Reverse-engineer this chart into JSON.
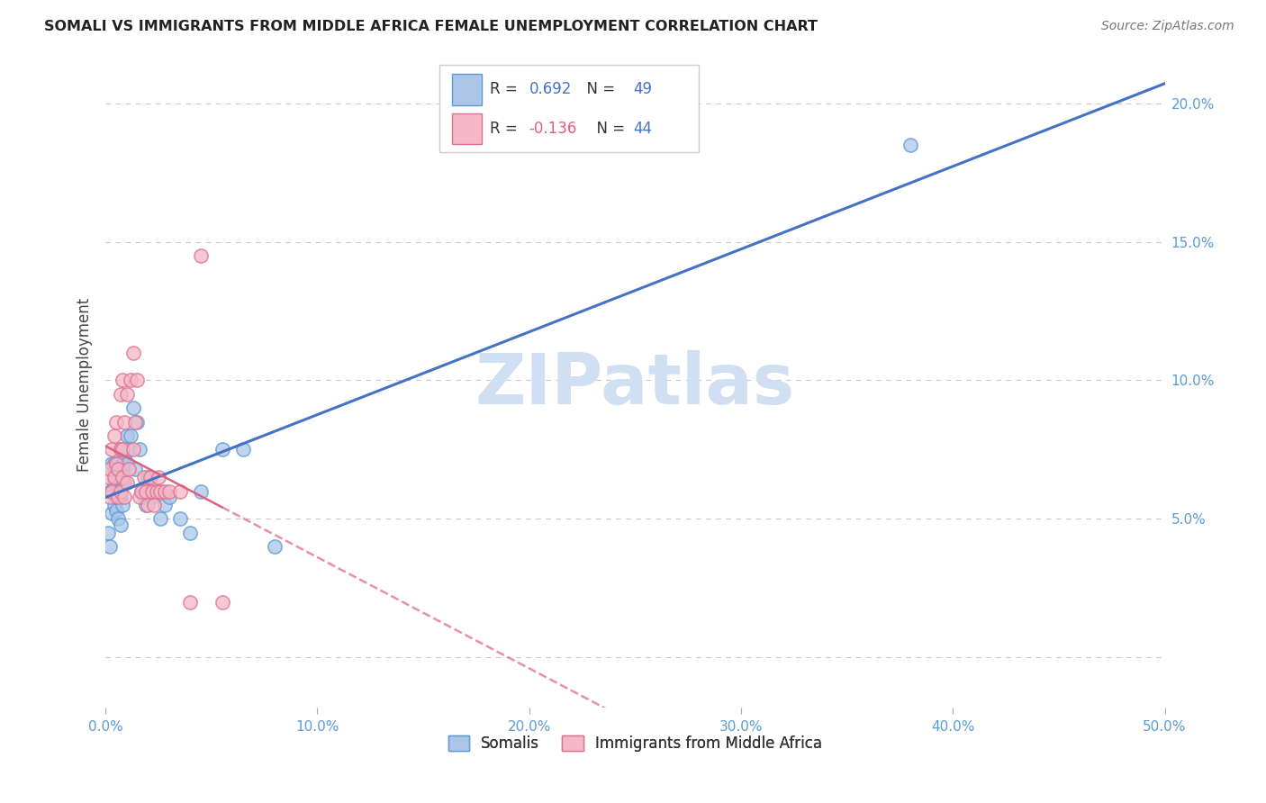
{
  "title": "SOMALI VS IMMIGRANTS FROM MIDDLE AFRICA FEMALE UNEMPLOYMENT CORRELATION CHART",
  "source": "Source: ZipAtlas.com",
  "ylabel": "Female Unemployment",
  "xlim": [
    0.0,
    0.5
  ],
  "ylim": [
    -0.018,
    0.215
  ],
  "xticks": [
    0.0,
    0.1,
    0.2,
    0.3,
    0.4,
    0.5
  ],
  "xticklabels": [
    "0.0%",
    "10.0%",
    "20.0%",
    "30.0%",
    "40.0%",
    "50.0%"
  ],
  "yticks": [
    0.0,
    0.05,
    0.1,
    0.15,
    0.2
  ],
  "yticklabels": [
    "",
    "5.0%",
    "10.0%",
    "15.0%",
    "20.0%"
  ],
  "somali_R": 0.692,
  "somali_N": 49,
  "immigrant_R": -0.136,
  "immigrant_N": 44,
  "somali_color": "#adc6e8",
  "somali_edge_color": "#5b9bd5",
  "immigrant_color": "#f4b8c8",
  "immigrant_edge_color": "#e07090",
  "somali_line_color": "#4472c4",
  "immigrant_line_color": "#e06080",
  "watermark": "ZIPatlas",
  "watermark_color": "#d0dff2",
  "tick_color": "#5b9bd5",
  "grid_color": "#c8c8c8",
  "somali_x": [
    0.001,
    0.002,
    0.002,
    0.003,
    0.003,
    0.003,
    0.004,
    0.004,
    0.004,
    0.005,
    0.005,
    0.005,
    0.006,
    0.006,
    0.006,
    0.007,
    0.007,
    0.007,
    0.007,
    0.008,
    0.008,
    0.008,
    0.009,
    0.009,
    0.01,
    0.01,
    0.011,
    0.012,
    0.013,
    0.014,
    0.015,
    0.016,
    0.017,
    0.018,
    0.019,
    0.02,
    0.021,
    0.022,
    0.024,
    0.026,
    0.028,
    0.03,
    0.035,
    0.04,
    0.045,
    0.055,
    0.065,
    0.08,
    0.38
  ],
  "somali_y": [
    0.045,
    0.04,
    0.06,
    0.052,
    0.06,
    0.07,
    0.055,
    0.063,
    0.07,
    0.053,
    0.058,
    0.068,
    0.05,
    0.06,
    0.07,
    0.048,
    0.058,
    0.065,
    0.075,
    0.055,
    0.062,
    0.07,
    0.063,
    0.072,
    0.07,
    0.08,
    0.075,
    0.08,
    0.09,
    0.068,
    0.085,
    0.075,
    0.06,
    0.058,
    0.055,
    0.065,
    0.06,
    0.058,
    0.06,
    0.05,
    0.055,
    0.058,
    0.05,
    0.045,
    0.06,
    0.075,
    0.075,
    0.04,
    0.185
  ],
  "immigrant_x": [
    0.001,
    0.002,
    0.002,
    0.003,
    0.003,
    0.004,
    0.004,
    0.005,
    0.005,
    0.006,
    0.006,
    0.007,
    0.007,
    0.007,
    0.008,
    0.008,
    0.008,
    0.009,
    0.009,
    0.01,
    0.01,
    0.011,
    0.012,
    0.013,
    0.013,
    0.014,
    0.015,
    0.016,
    0.017,
    0.018,
    0.019,
    0.02,
    0.021,
    0.022,
    0.023,
    0.024,
    0.025,
    0.026,
    0.028,
    0.03,
    0.035,
    0.04,
    0.045,
    0.055
  ],
  "immigrant_y": [
    0.065,
    0.058,
    0.068,
    0.06,
    0.075,
    0.065,
    0.08,
    0.07,
    0.085,
    0.058,
    0.068,
    0.06,
    0.075,
    0.095,
    0.065,
    0.075,
    0.1,
    0.058,
    0.085,
    0.063,
    0.095,
    0.068,
    0.1,
    0.11,
    0.075,
    0.085,
    0.1,
    0.058,
    0.06,
    0.065,
    0.06,
    0.055,
    0.065,
    0.06,
    0.055,
    0.06,
    0.065,
    0.06,
    0.06,
    0.06,
    0.06,
    0.02,
    0.145,
    0.02
  ]
}
